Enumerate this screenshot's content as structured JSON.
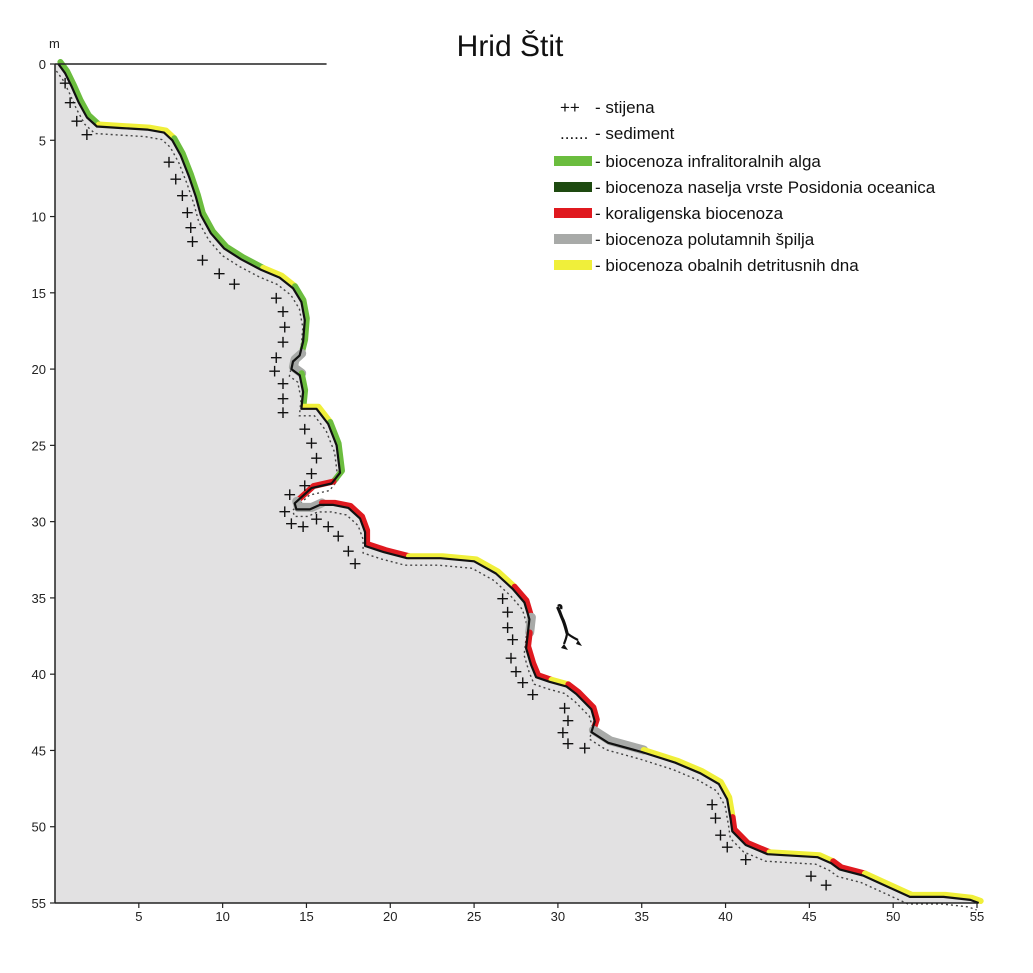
{
  "title": "Hrid Štit",
  "y_unit": "m",
  "legend": [
    {
      "symbol": "++",
      "label": "- stijena",
      "type": "text"
    },
    {
      "symbol": "......",
      "label": "- sediment",
      "type": "text"
    },
    {
      "color": "#6bbd3e",
      "label": "- biocenoza infralitoralnih alga",
      "type": "swatch"
    },
    {
      "color": "#1e4a10",
      "label": "- biocenoza naselja vrste Posidonia oceanica",
      "type": "swatch"
    },
    {
      "color": "#e0191f",
      "label": "- koraligenska biocenoza",
      "type": "swatch"
    },
    {
      "color": "#a8aaa8",
      "label": "- biocenoza polutamnih špilja",
      "type": "swatch"
    },
    {
      "color": "#f0ef3a",
      "label": "- biocenoza obalnih detritusnih dna",
      "type": "swatch"
    }
  ],
  "chart_data": {
    "type": "profile",
    "title": "Hrid Štit",
    "ylabel": "m",
    "xlim": [
      0,
      55
    ],
    "ylim": [
      0,
      55
    ],
    "x_ticks": [
      5,
      10,
      15,
      20,
      25,
      30,
      35,
      40,
      45,
      50,
      55
    ],
    "y_ticks": [
      0,
      5,
      10,
      15,
      20,
      25,
      30,
      35,
      40,
      45,
      50,
      55
    ],
    "profile": [
      [
        0.2,
        0
      ],
      [
        0.6,
        0.6
      ],
      [
        1.0,
        1.5
      ],
      [
        1.4,
        2.5
      ],
      [
        1.9,
        3.5
      ],
      [
        2.5,
        4.1
      ],
      [
        4,
        4.2
      ],
      [
        5.5,
        4.3
      ],
      [
        6.5,
        4.5
      ],
      [
        7,
        5
      ],
      [
        7.5,
        6
      ],
      [
        8,
        7.4
      ],
      [
        8.4,
        8.7
      ],
      [
        8.7,
        9.9
      ],
      [
        9.3,
        11.1
      ],
      [
        10.1,
        12.1
      ],
      [
        11.1,
        12.8
      ],
      [
        12.3,
        13.5
      ],
      [
        13.4,
        14.0
      ],
      [
        14.2,
        14.7
      ],
      [
        14.7,
        15.6
      ],
      [
        14.9,
        16.8
      ],
      [
        14.8,
        18.2
      ],
      [
        14.6,
        19.1
      ],
      [
        14.2,
        19.5
      ],
      [
        14.1,
        20.0
      ],
      [
        14.6,
        20.4
      ],
      [
        14.8,
        21.5
      ],
      [
        14.7,
        22.6
      ],
      [
        15.6,
        22.6
      ],
      [
        16.3,
        23.6
      ],
      [
        16.8,
        25.0
      ],
      [
        17.0,
        26.8
      ],
      [
        16.5,
        27.5
      ],
      [
        15.3,
        27.8
      ],
      [
        14.3,
        28.8
      ],
      [
        14.4,
        29.2
      ],
      [
        15.2,
        29.2
      ],
      [
        15.8,
        28.9
      ],
      [
        16.6,
        28.9
      ],
      [
        17.5,
        29.1
      ],
      [
        18.2,
        29.8
      ],
      [
        18.5,
        30.7
      ],
      [
        18.5,
        31.6
      ],
      [
        19.6,
        32.0
      ],
      [
        21,
        32.4
      ],
      [
        23,
        32.4
      ],
      [
        25,
        32.6
      ],
      [
        26.3,
        33.4
      ],
      [
        27.3,
        34.4
      ],
      [
        28.0,
        35.3
      ],
      [
        28.3,
        36.4
      ],
      [
        28.2,
        37.4
      ],
      [
        28.1,
        38.3
      ],
      [
        28.4,
        39.4
      ],
      [
        28.7,
        40.2
      ],
      [
        29.5,
        40.5
      ],
      [
        30.5,
        40.8
      ],
      [
        31.1,
        41.3
      ],
      [
        32.0,
        42.3
      ],
      [
        32.2,
        43.1
      ],
      [
        32.0,
        43.8
      ],
      [
        33.0,
        44.5
      ],
      [
        35,
        45.1
      ],
      [
        37,
        45.8
      ],
      [
        38.5,
        46.5
      ],
      [
        39.6,
        47.2
      ],
      [
        40.1,
        48.2
      ],
      [
        40.3,
        49.5
      ],
      [
        40.4,
        50.3
      ],
      [
        41.2,
        51.2
      ],
      [
        42.5,
        51.8
      ],
      [
        45.5,
        52.0
      ],
      [
        46.3,
        52.4
      ],
      [
        46.8,
        52.8
      ],
      [
        48.2,
        53.2
      ],
      [
        49.8,
        54.0
      ],
      [
        51.0,
        54.6
      ],
      [
        53,
        54.6
      ],
      [
        54.6,
        54.8
      ],
      [
        55.1,
        55.0
      ]
    ],
    "surface": {
      "x_start": 0,
      "x_end": 16.2,
      "depth": 0
    },
    "biocenosis_segments": [
      {
        "class": "infralitoral_alga",
        "color": "#6bbd3e",
        "from": 0,
        "to": 5
      },
      {
        "class": "obalnih_detritusnih_dna",
        "color": "#f0ef3a",
        "from": 5,
        "to": 9
      },
      {
        "class": "infralitoral_alga",
        "color": "#6bbd3e",
        "from": 9,
        "to": 17
      },
      {
        "class": "obalnih_detritusnih_dna",
        "color": "#f0ef3a",
        "from": 17,
        "to": 19
      },
      {
        "class": "infralitoral_alga",
        "color": "#6bbd3e",
        "from": 19,
        "to": 23
      },
      {
        "class": "polutamnih_spilja",
        "color": "#a8aaa8",
        "from": 23,
        "to": 26
      },
      {
        "class": "infralitoral_alga",
        "color": "#6bbd3e",
        "from": 26,
        "to": 28
      },
      {
        "class": "obalnih_detritusnih_dna",
        "color": "#f0ef3a",
        "from": 28,
        "to": 30
      },
      {
        "class": "infralitoral_alga",
        "color": "#6bbd3e",
        "from": 30,
        "to": 33
      },
      {
        "class": "koraligenska",
        "color": "#e0191f",
        "from": 33,
        "to": 35
      },
      {
        "class": "polutamnih_spilja",
        "color": "#a8aaa8",
        "from": 35,
        "to": 38
      },
      {
        "class": "koraligenska",
        "color": "#e0191f",
        "from": 38,
        "to": 45
      },
      {
        "class": "obalnih_detritusnih_dna",
        "color": "#f0ef3a",
        "from": 45,
        "to": 49
      },
      {
        "class": "koraligenska",
        "color": "#e0191f",
        "from": 49,
        "to": 51
      },
      {
        "class": "polutamnih_spilja",
        "color": "#a8aaa8",
        "from": 51,
        "to": 52
      },
      {
        "class": "koraligenska",
        "color": "#e0191f",
        "from": 52,
        "to": 56
      },
      {
        "class": "obalnih_detritusnih_dna",
        "color": "#f0ef3a",
        "from": 56,
        "to": 57
      },
      {
        "class": "koraligenska",
        "color": "#e0191f",
        "from": 57,
        "to": 61
      },
      {
        "class": "polutamnih_spilja",
        "color": "#a8aaa8",
        "from": 61,
        "to": 63
      },
      {
        "class": "obalnih_detritusnih_dna",
        "color": "#f0ef3a",
        "from": 63,
        "to": 68
      },
      {
        "class": "koraligenska",
        "color": "#e0191f",
        "from": 68,
        "to": 71
      },
      {
        "class": "obalnih_detritusnih_dna",
        "color": "#f0ef3a",
        "from": 71,
        "to": 73
      },
      {
        "class": "koraligenska",
        "color": "#e0191f",
        "from": 73,
        "to": 75
      },
      {
        "class": "obalnih_detritusnih_dna",
        "color": "#f0ef3a",
        "from": 75,
        "to": 81
      }
    ],
    "rock_markers": [
      [
        0.6,
        1.2
      ],
      [
        0.9,
        2.5
      ],
      [
        1.3,
        3.7
      ],
      [
        1.9,
        4.6
      ],
      [
        6.8,
        6.4
      ],
      [
        7.2,
        7.5
      ],
      [
        7.6,
        8.6
      ],
      [
        7.9,
        9.7
      ],
      [
        8.1,
        10.7
      ],
      [
        8.2,
        11.6
      ],
      [
        8.8,
        12.8
      ],
      [
        9.8,
        13.7
      ],
      [
        10.7,
        14.4
      ],
      [
        13.2,
        15.3
      ],
      [
        13.6,
        16.2
      ],
      [
        13.7,
        17.2
      ],
      [
        13.6,
        18.2
      ],
      [
        13.2,
        19.2
      ],
      [
        13.1,
        20.1
      ],
      [
        13.6,
        20.9
      ],
      [
        13.6,
        21.9
      ],
      [
        13.6,
        22.8
      ],
      [
        14.9,
        23.9
      ],
      [
        15.3,
        24.8
      ],
      [
        15.6,
        25.8
      ],
      [
        15.3,
        26.8
      ],
      [
        14.9,
        27.6
      ],
      [
        14.0,
        28.2
      ],
      [
        13.7,
        29.3
      ],
      [
        14.1,
        30.1
      ],
      [
        14.8,
        30.3
      ],
      [
        15.6,
        29.8
      ],
      [
        16.3,
        30.3
      ],
      [
        16.9,
        30.9
      ],
      [
        17.5,
        31.9
      ],
      [
        17.9,
        32.7
      ],
      [
        26.7,
        35.0
      ],
      [
        27.0,
        35.9
      ],
      [
        27.0,
        36.9
      ],
      [
        27.3,
        37.7
      ],
      [
        27.2,
        38.9
      ],
      [
        27.5,
        39.8
      ],
      [
        27.9,
        40.5
      ],
      [
        28.5,
        41.3
      ],
      [
        30.4,
        42.2
      ],
      [
        30.6,
        43.0
      ],
      [
        30.3,
        43.8
      ],
      [
        30.6,
        44.5
      ],
      [
        31.6,
        44.8
      ],
      [
        39.2,
        48.5
      ],
      [
        39.4,
        49.4
      ],
      [
        39.7,
        50.5
      ],
      [
        40.1,
        51.3
      ],
      [
        41.2,
        52.1
      ],
      [
        45.1,
        53.2
      ],
      [
        46.0,
        53.8
      ]
    ]
  }
}
